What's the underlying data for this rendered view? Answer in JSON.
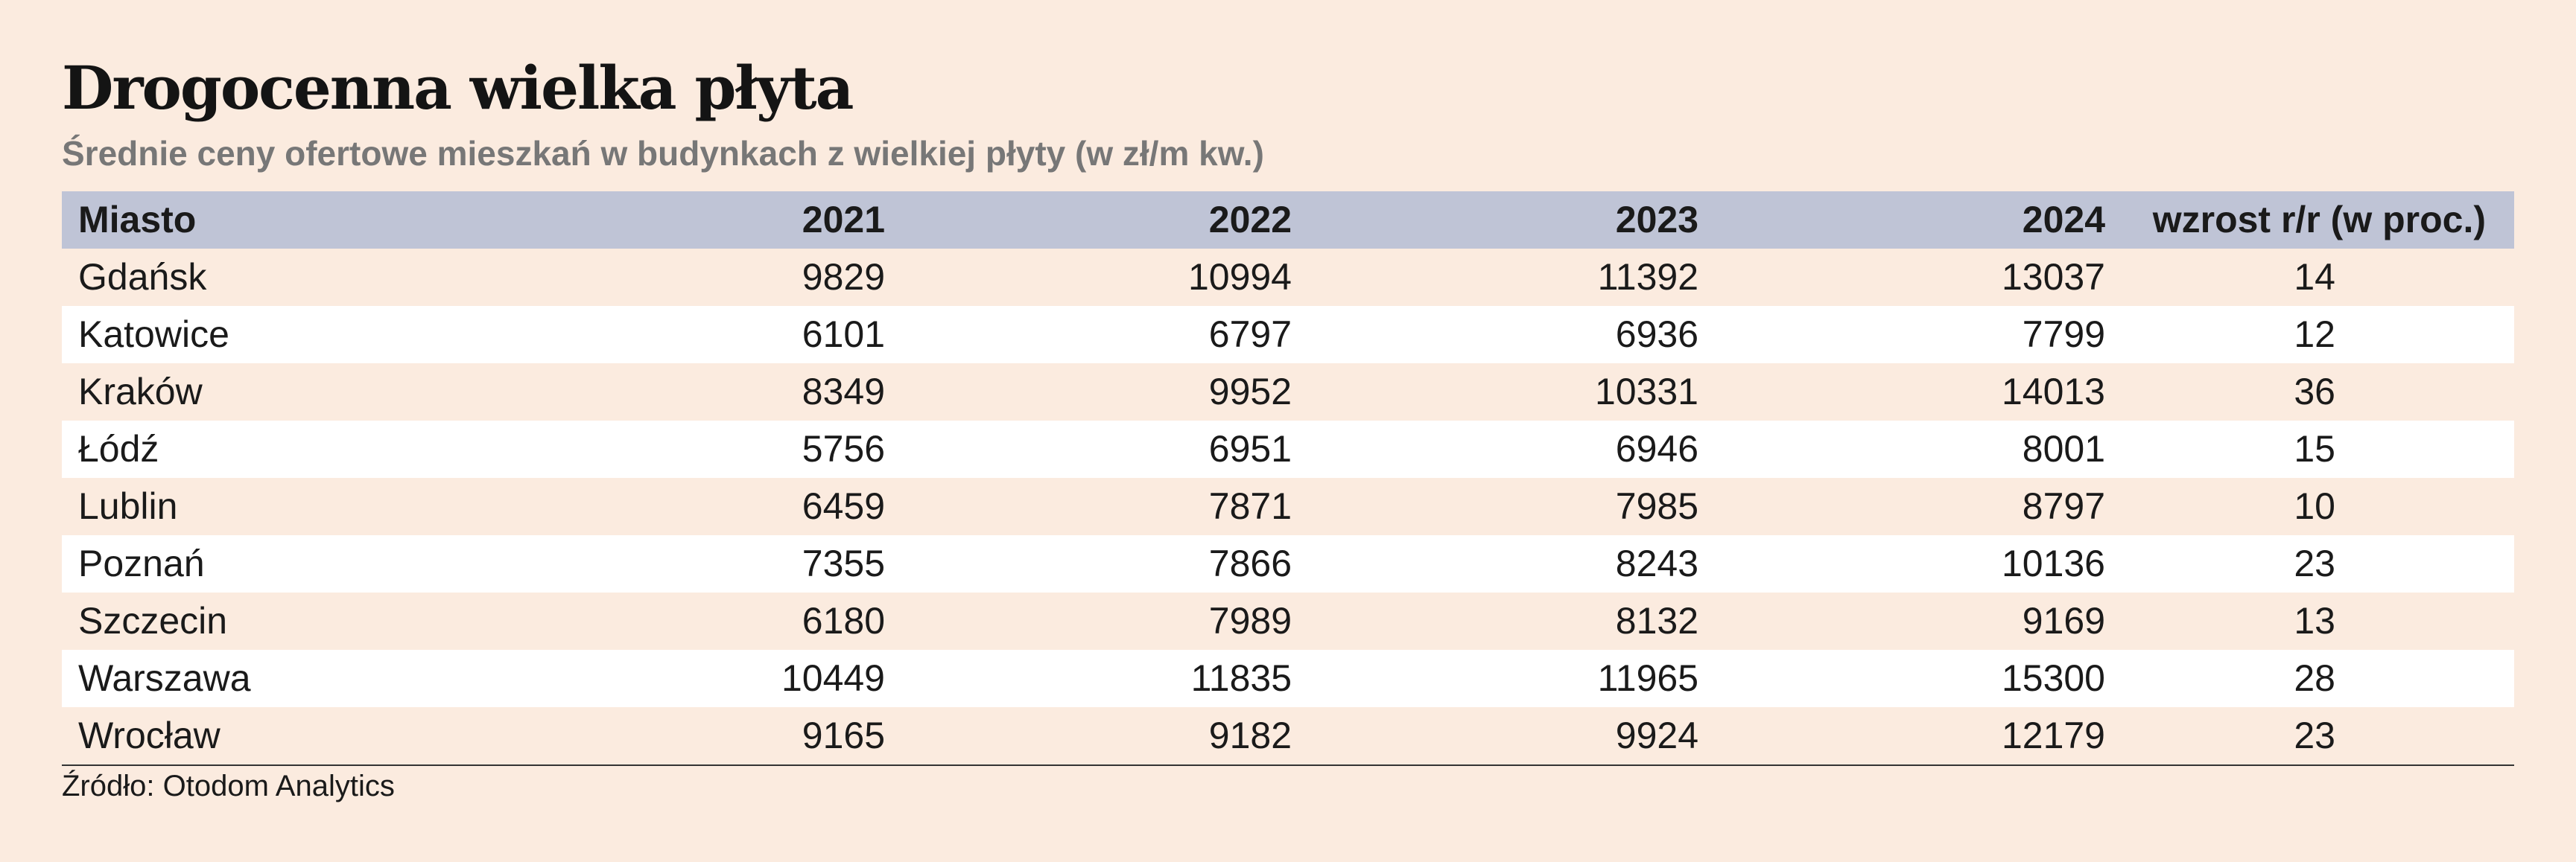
{
  "title": "Drogocenna wielka płyta",
  "subtitle": "Średnie ceny ofertowe mieszkań w budynkach z wielkiej płyty (w zł/m kw.)",
  "table": {
    "headers": [
      "Miasto",
      "2021",
      "2022",
      "2023",
      "2024",
      "wzrost r/r (w proc.)"
    ],
    "rows": [
      [
        "Gdańsk",
        "9829",
        "10994",
        "11392",
        "13037",
        "14"
      ],
      [
        "Katowice",
        "6101",
        "6797",
        "6936",
        "7799",
        "12"
      ],
      [
        "Kraków",
        "8349",
        "9952",
        "10331",
        "14013",
        "36"
      ],
      [
        "Łódź",
        "5756",
        "6951",
        "6946",
        "8001",
        "15"
      ],
      [
        "Lublin",
        "6459",
        "7871",
        "7985",
        "8797",
        "10"
      ],
      [
        "Poznań",
        "7355",
        "7866",
        "8243",
        "10136",
        "23"
      ],
      [
        "Szczecin",
        "6180",
        "7989",
        "8132",
        "9169",
        "13"
      ],
      [
        "Warszawa",
        "10449",
        "11835",
        "11965",
        "15300",
        "28"
      ],
      [
        "Wrocław",
        "9165",
        "9182",
        "9924",
        "12179",
        "23"
      ]
    ]
  },
  "source": "Źródło: Otodom Analytics",
  "colors": {
    "background": "#fbebdf",
    "header_row": "#bfc4d6",
    "alt_row": "#ffffff",
    "subtitle": "#777777"
  }
}
